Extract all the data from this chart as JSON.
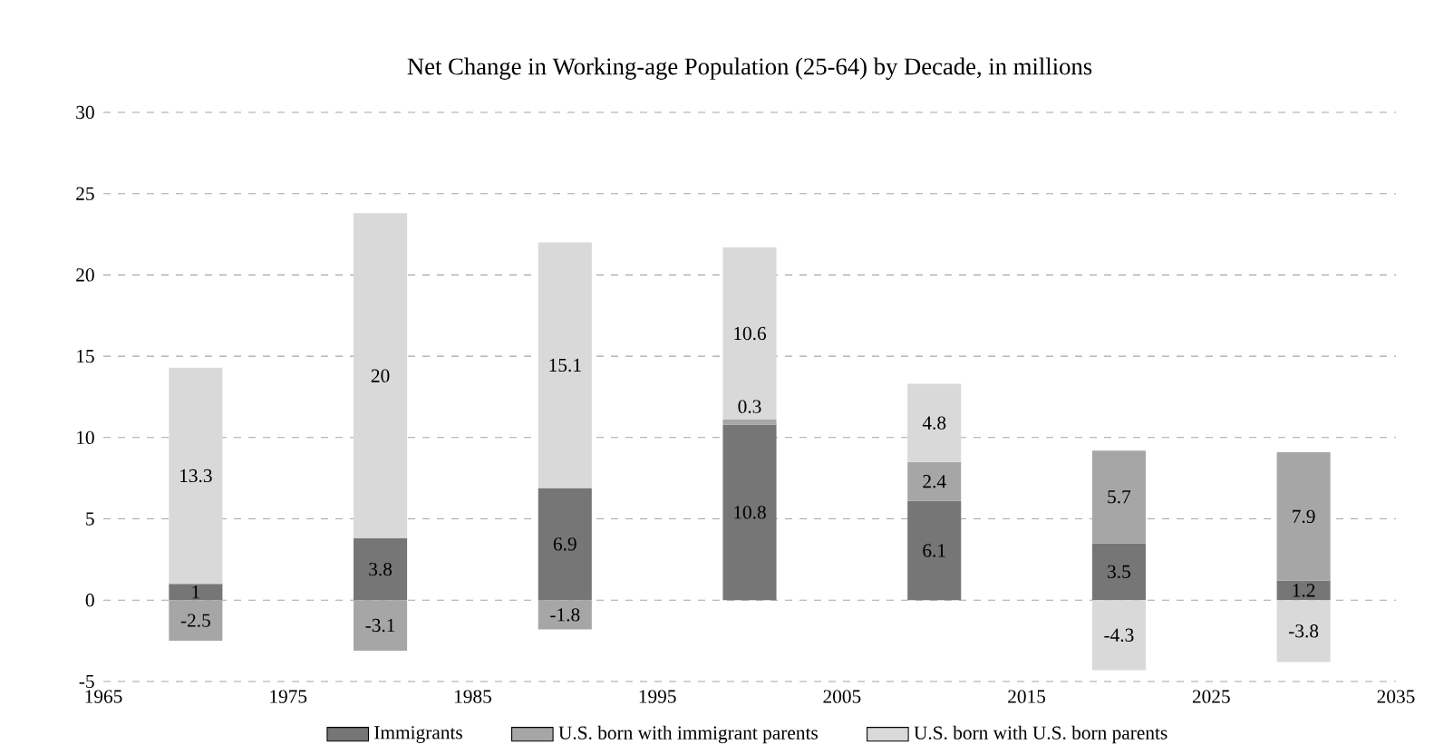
{
  "chart_data": {
    "type": "bar",
    "stacked": true,
    "title": "Net Change in Working-age Population (25-64) by Decade, in millions",
    "x": [
      1970,
      1980,
      1990,
      2000,
      2010,
      2020,
      2030
    ],
    "series": [
      {
        "name": "Immigrants",
        "color": "#767676",
        "values": [
          1,
          3.8,
          6.9,
          10.8,
          6.1,
          3.5,
          1.2
        ]
      },
      {
        "name": "U.S. born with immigrant parents",
        "color": "#a6a6a6",
        "values": [
          -2.5,
          -3.1,
          -1.8,
          0.3,
          2.4,
          5.7,
          7.9
        ]
      },
      {
        "name": "U.S. born with U.S. born parents",
        "color": "#d9d9d9",
        "values": [
          13.3,
          20,
          15.1,
          10.6,
          4.8,
          -4.3,
          -3.8
        ]
      }
    ],
    "xlim": [
      1965,
      2035
    ],
    "xticks": [
      1965,
      1975,
      1985,
      1995,
      2005,
      2015,
      2025,
      2035
    ],
    "ylim": [
      -5,
      30
    ],
    "yticks": [
      -5,
      0,
      5,
      10,
      15,
      20,
      25,
      30
    ],
    "grid": "y",
    "legend": "bottom",
    "data_labels": true
  }
}
